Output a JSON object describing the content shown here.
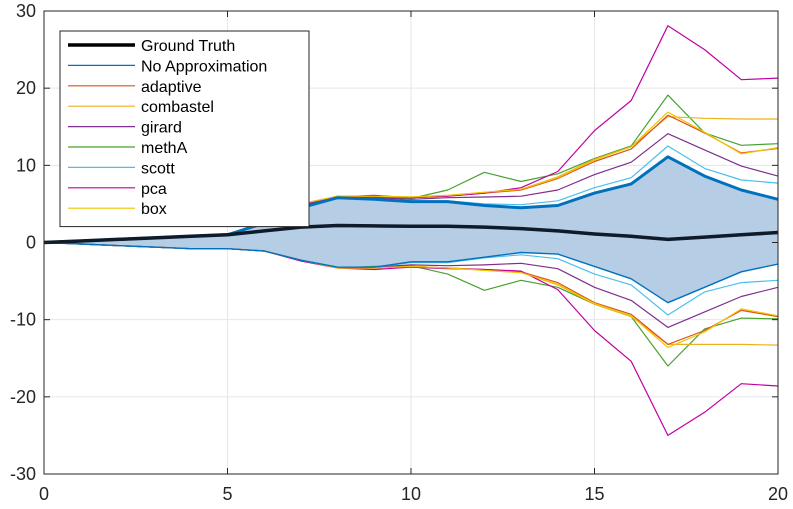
{
  "chart_data": {
    "type": "line",
    "title": "",
    "xlabel": "",
    "ylabel": "",
    "xlim": [
      0,
      20
    ],
    "ylim": [
      -30,
      30
    ],
    "xticks": [
      0,
      5,
      10,
      15,
      20
    ],
    "yticks": [
      -30,
      -20,
      -10,
      0,
      10,
      20,
      30
    ],
    "xtick_labels": [
      "0",
      "5",
      "10",
      "15",
      "20"
    ],
    "ytick_labels": [
      "-30",
      "-20",
      "-10",
      "0",
      "10",
      "20",
      "30"
    ],
    "grid": true,
    "legend_position": "top-left",
    "x": [
      0,
      1,
      2,
      3,
      4,
      5,
      6,
      7,
      8,
      9,
      10,
      11,
      12,
      13,
      14,
      15,
      16,
      17,
      18,
      19,
      20
    ],
    "band": {
      "name": "No Approximation",
      "fill_color": "#b6cde6",
      "upper": [
        0,
        0.2,
        0.4,
        0.6,
        0.8,
        1,
        2.5,
        4.5,
        5.8,
        5.6,
        5.3,
        5.3,
        4.8,
        4.5,
        4.8,
        6.4,
        7.6,
        11.1,
        8.6,
        6.8,
        5.6
      ],
      "lower": [
        0,
        -0.2,
        -0.4,
        -0.6,
        -0.8,
        -0.8,
        -1.1,
        -2.3,
        -3.2,
        -3.2,
        -2.5,
        -2.5,
        -1.9,
        -1.3,
        -1.5,
        -3.1,
        -4.7,
        -7.8,
        -5.8,
        -3.8,
        -2.8
      ]
    },
    "series": [
      {
        "name": "Ground Truth",
        "color": "#000000",
        "width": 3.5,
        "values": [
          0,
          0.2,
          0.4,
          0.6,
          0.8,
          1,
          1.5,
          2,
          2.2,
          2.15,
          2.1,
          2.1,
          2.0,
          1.8,
          1.5,
          1.1,
          0.8,
          0.4,
          0.7,
          1.0,
          1.3
        ]
      },
      {
        "name": "No Approximation",
        "color": "#0072bd",
        "width": 1.2,
        "in_legend": true
      },
      {
        "name": "adaptive",
        "color": "#d95319",
        "width": 1.2,
        "upper": [
          0,
          0.2,
          0.4,
          0.6,
          0.8,
          1,
          2.6,
          4.9,
          6.0,
          5.9,
          5.8,
          6.0,
          6.4,
          6.8,
          8.3,
          10.5,
          12.1,
          16.5,
          14.2,
          11.6,
          12.2
        ],
        "lower": [
          0,
          -0.2,
          -0.4,
          -0.6,
          -0.8,
          -0.8,
          -1.1,
          -2.3,
          -3.2,
          -3.3,
          -3.1,
          -3.3,
          -3.5,
          -3.8,
          -5.2,
          -7.8,
          -9.3,
          -13.2,
          -11.4,
          -8.8,
          -9.6
        ]
      },
      {
        "name": "combastel",
        "color": "#edb120",
        "width": 1.2,
        "upper": [
          0,
          0.2,
          0.4,
          0.6,
          0.8,
          1,
          2.6,
          5.0,
          6.0,
          6.0,
          5.9,
          6.1,
          6.5,
          6.9,
          8.5,
          10.8,
          12.4,
          16.3,
          16.1,
          16.0,
          16.0
        ],
        "lower": [
          0,
          -0.2,
          -0.4,
          -0.6,
          -0.8,
          -0.8,
          -1.1,
          -2.3,
          -3.3,
          -3.3,
          -3.1,
          -3.3,
          -3.6,
          -3.9,
          -5.5,
          -8.0,
          -9.6,
          -13.2,
          -13.2,
          -13.2,
          -13.3
        ]
      },
      {
        "name": "girard",
        "color": "#7e2f8e",
        "width": 1.2,
        "upper": [
          0,
          0.2,
          0.4,
          0.6,
          0.8,
          1,
          2.6,
          4.8,
          5.9,
          5.8,
          5.6,
          5.8,
          5.9,
          6.0,
          6.8,
          8.8,
          10.4,
          14.1,
          12.0,
          9.9,
          8.6
        ],
        "lower": [
          0,
          -0.2,
          -0.4,
          -0.6,
          -0.8,
          -0.8,
          -1.1,
          -2.3,
          -3.2,
          -3.2,
          -2.9,
          -3.0,
          -2.9,
          -2.7,
          -3.4,
          -5.8,
          -7.5,
          -11.0,
          -9.0,
          -7.0,
          -5.8
        ]
      },
      {
        "name": "methA",
        "color": "#47a22f",
        "width": 1.2,
        "upper": [
          0,
          0.2,
          0.4,
          0.6,
          0.8,
          1,
          2.6,
          5.0,
          6.0,
          5.8,
          5.7,
          6.8,
          9.1,
          7.9,
          8.9,
          10.9,
          12.5,
          19.1,
          14.2,
          12.6,
          12.8
        ],
        "lower": [
          0,
          -0.2,
          -0.4,
          -0.6,
          -0.8,
          -0.8,
          -1.1,
          -2.3,
          -3.3,
          -3.1,
          -3.0,
          -4.1,
          -6.2,
          -4.9,
          -5.8,
          -8.0,
          -9.6,
          -16.0,
          -11.2,
          -9.8,
          -9.9
        ]
      },
      {
        "name": "scott",
        "color": "#4dbeee",
        "width": 1.2,
        "upper": [
          0,
          0.2,
          0.4,
          0.6,
          0.8,
          1,
          2.5,
          4.6,
          5.8,
          5.7,
          5.4,
          5.4,
          5.0,
          4.9,
          5.4,
          7.1,
          8.4,
          12.5,
          9.6,
          8.1,
          7.7
        ],
        "lower": [
          0,
          -0.2,
          -0.4,
          -0.6,
          -0.8,
          -0.8,
          -1.1,
          -2.3,
          -3.2,
          -3.2,
          -2.6,
          -2.6,
          -2.0,
          -1.6,
          -2.1,
          -4.1,
          -5.5,
          -9.4,
          -6.4,
          -5.2,
          -4.9
        ]
      },
      {
        "name": "pca",
        "color": "#c000a0",
        "width": 1.2,
        "upper": [
          0,
          0.2,
          0.4,
          0.6,
          0.8,
          1,
          2.7,
          5.0,
          5.9,
          6.1,
          5.8,
          6.0,
          6.4,
          7.1,
          9.2,
          14.5,
          18.4,
          28.1,
          25.0,
          21.1,
          21.3
        ],
        "lower": [
          0,
          -0.2,
          -0.4,
          -0.6,
          -0.8,
          -0.8,
          -1.1,
          -2.4,
          -3.3,
          -3.5,
          -3.2,
          -3.4,
          -3.5,
          -3.7,
          -6.1,
          -11.4,
          -15.4,
          -25.0,
          -22.0,
          -18.3,
          -18.6
        ]
      },
      {
        "name": "box",
        "color": "#f2c200",
        "width": 1.2,
        "upper": [
          0,
          0.2,
          0.4,
          0.6,
          0.8,
          1,
          2.6,
          5.0,
          6.0,
          6.0,
          5.9,
          6.1,
          6.5,
          6.9,
          8.4,
          10.7,
          12.4,
          16.9,
          14.3,
          11.5,
          12.3
        ],
        "lower": [
          0,
          -0.2,
          -0.4,
          -0.6,
          -0.8,
          -0.8,
          -1.1,
          -2.3,
          -3.3,
          -3.3,
          -3.1,
          -3.3,
          -3.6,
          -3.9,
          -5.4,
          -7.9,
          -9.5,
          -13.6,
          -11.6,
          -8.6,
          -9.5
        ]
      }
    ],
    "legend": [
      {
        "label": "Ground Truth",
        "color": "#000000",
        "width": 3.5
      },
      {
        "label": "No Approximation",
        "color": "#0072bd",
        "width": 1.2
      },
      {
        "label": "adaptive",
        "color": "#d95319",
        "width": 1.2
      },
      {
        "label": "combastel",
        "color": "#edb120",
        "width": 1.2
      },
      {
        "label": "girard",
        "color": "#7e2f8e",
        "width": 1.2
      },
      {
        "label": "methA",
        "color": "#47a22f",
        "width": 1.2
      },
      {
        "label": "scott",
        "color": "#4dbeee",
        "width": 1.2
      },
      {
        "label": "pca",
        "color": "#c000a0",
        "width": 1.2
      },
      {
        "label": "box",
        "color": "#f2c200",
        "width": 1.2
      }
    ]
  }
}
